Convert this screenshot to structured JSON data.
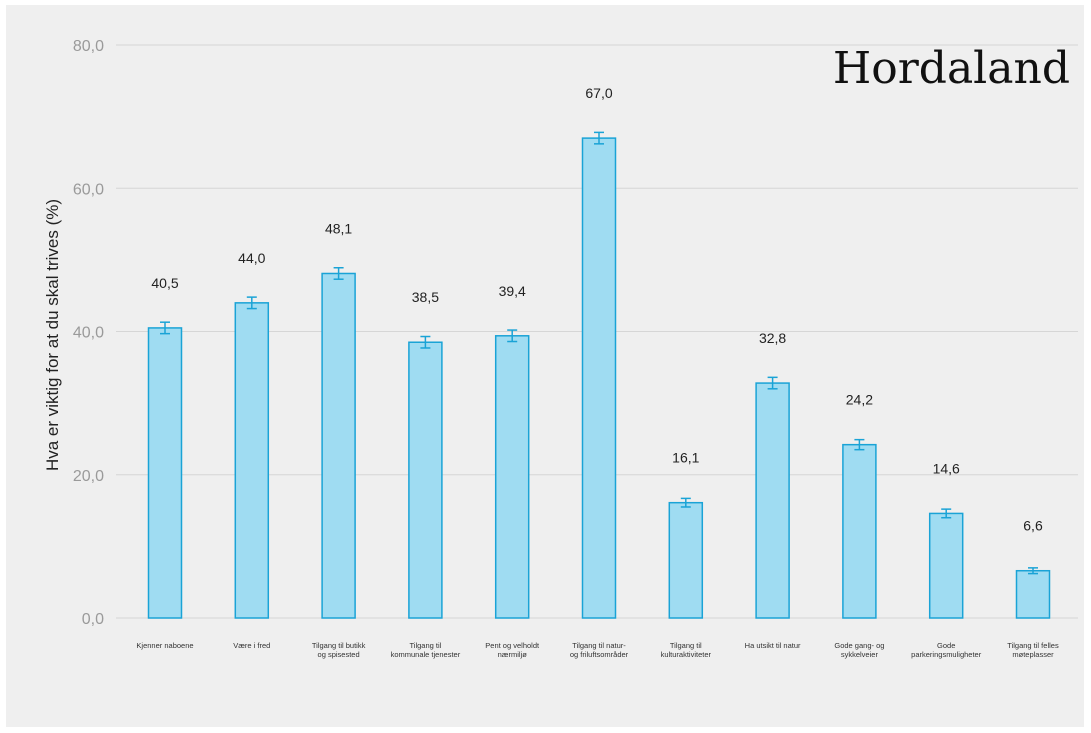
{
  "chart_data": {
    "type": "bar",
    "title": "Hordaland",
    "xlabel": "",
    "ylabel": "Hva er viktig for at du skal trives (%)",
    "ylim": [
      0,
      80
    ],
    "yticks": [
      "0,0",
      "20,0",
      "40,0",
      "60,0",
      "80,0"
    ],
    "grid": true,
    "legend": "none",
    "colors": {
      "bar_fill": "#9fdcf2",
      "bar_stroke": "#1aa3d6",
      "error_bar": "#1aa3d6",
      "grid": "#d6d6d6",
      "background": "#efefef"
    },
    "categories": [
      "Kjenner naboene",
      "Være i fred",
      "Tilgang til butikk og spisested",
      "Tilgang til kommunale tjenester",
      "Pent og velholdt nærmiljø",
      "Tilgang til natur- og friluftsområder",
      "Tilgang til kulturaktiviteter",
      "Ha utsikt til natur",
      "Gode gang- og sykkelveier",
      "Gode parkeringsmuligheter",
      "Tilgang til felles møteplasser"
    ],
    "category_lines": [
      [
        "Kjenner naboene"
      ],
      [
        "Være i fred"
      ],
      [
        "Tilgang til butikk",
        "og spisested"
      ],
      [
        "Tilgang til",
        "kommunale tjenester"
      ],
      [
        "Pent og velholdt",
        "nærmiljø"
      ],
      [
        "Tilgang til natur-",
        "og friluftsområder"
      ],
      [
        "Tilgang til",
        "kulturaktiviteter"
      ],
      [
        "Ha utsikt til natur"
      ],
      [
        "Gode gang- og",
        "sykkelveier"
      ],
      [
        "Gode",
        "parkeringsmuligheter"
      ],
      [
        "Tilgang til felles",
        "møteplasser"
      ]
    ],
    "values": [
      40.5,
      44.0,
      48.1,
      38.5,
      39.4,
      67.0,
      16.1,
      32.8,
      24.2,
      14.6,
      6.6
    ],
    "value_labels": [
      "40,5",
      "44,0",
      "48,1",
      "38,5",
      "39,4",
      "67,0",
      "16,1",
      "32,8",
      "24,2",
      "14,6",
      "6,6"
    ],
    "error_margin": [
      0.8,
      0.8,
      0.8,
      0.8,
      0.8,
      0.8,
      0.6,
      0.8,
      0.7,
      0.6,
      0.4
    ]
  }
}
